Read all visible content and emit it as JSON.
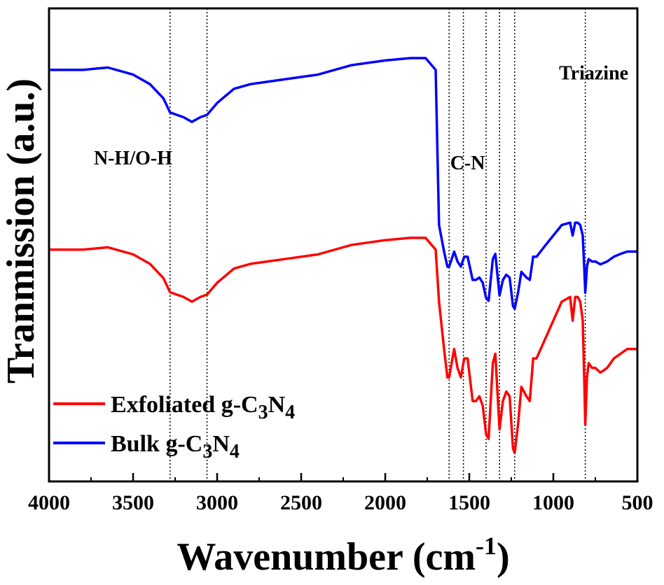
{
  "chart_data": {
    "type": "line",
    "xlabel": "Wavenumber (cm",
    "xlabel_sup": "-1",
    "xlabel_close": ")",
    "ylabel": "Tranmission (a.u.)",
    "xlim": [
      4000,
      500
    ],
    "x_reversed": true,
    "xticks": [
      4000,
      3500,
      3000,
      2500,
      2000,
      1500,
      1000,
      500
    ],
    "ylim": [
      0,
      100
    ],
    "grid": false,
    "legend_position": "bottom-left",
    "annotations": [
      {
        "text": "N-H/O-H",
        "x": 3500,
        "y": 67
      },
      {
        "text": "C-N",
        "x": 1510,
        "y": 66
      },
      {
        "text": "Triazine",
        "x": 760,
        "y": 85
      }
    ],
    "vlines": [
      3280,
      3060,
      1620,
      1535,
      1400,
      1320,
      1230,
      810
    ],
    "series": [
      {
        "name": "Exfoliated g-C3N4",
        "legend_main": "Exfoliated g-C",
        "legend_sub1": "3",
        "legend_mid": "N",
        "legend_sub2": "4",
        "color": "#ff0000",
        "x": [
          4000,
          3800,
          3650,
          3500,
          3400,
          3320,
          3280,
          3240,
          3200,
          3150,
          3100,
          3060,
          3000,
          2900,
          2800,
          2600,
          2400,
          2200,
          2000,
          1850,
          1760,
          1700,
          1680,
          1650,
          1630,
          1620,
          1600,
          1590,
          1570,
          1550,
          1530,
          1510,
          1480,
          1460,
          1440,
          1420,
          1400,
          1385,
          1360,
          1345,
          1320,
          1300,
          1280,
          1260,
          1240,
          1230,
          1210,
          1190,
          1160,
          1140,
          1120,
          1100,
          1050,
          1000,
          950,
          900,
          885,
          870,
          855,
          840,
          825,
          815,
          810,
          800,
          790,
          770,
          750,
          720,
          680,
          640,
          600,
          560,
          520,
          500
        ],
        "y": [
          49,
          49,
          49.5,
          48,
          46,
          43,
          40,
          39.5,
          39,
          38,
          39,
          39.5,
          42,
          45,
          46,
          47,
          48,
          50,
          51,
          51.5,
          51.5,
          49,
          38,
          28,
          22,
          22,
          26,
          28,
          24,
          22,
          26,
          26,
          17,
          17,
          18,
          16,
          10,
          9,
          25,
          27,
          11,
          17,
          19,
          18,
          7,
          6,
          12,
          20,
          18,
          17,
          26,
          26,
          30,
          34,
          38,
          39,
          34,
          39,
          39,
          38,
          34,
          20,
          12,
          22,
          25,
          24,
          24,
          23,
          24,
          26,
          27,
          28,
          28,
          28
        ]
      },
      {
        "name": "Bulk g-C3N4",
        "legend_main": "Bulk g-C",
        "legend_sub1": "3",
        "legend_mid": "N",
        "legend_sub2": "4",
        "color": "#0000ff",
        "x": [
          4000,
          3800,
          3650,
          3500,
          3400,
          3320,
          3280,
          3240,
          3200,
          3150,
          3100,
          3060,
          3000,
          2900,
          2800,
          2600,
          2400,
          2200,
          2000,
          1850,
          1760,
          1700,
          1680,
          1650,
          1630,
          1620,
          1600,
          1590,
          1570,
          1550,
          1530,
          1510,
          1480,
          1460,
          1440,
          1420,
          1400,
          1385,
          1360,
          1345,
          1320,
          1300,
          1280,
          1260,
          1240,
          1230,
          1210,
          1190,
          1160,
          1140,
          1120,
          1100,
          1050,
          1000,
          950,
          900,
          885,
          870,
          855,
          840,
          825,
          815,
          810,
          800,
          790,
          770,
          750,
          720,
          680,
          640,
          600,
          560,
          520,
          500
        ]
      }
    ]
  }
}
